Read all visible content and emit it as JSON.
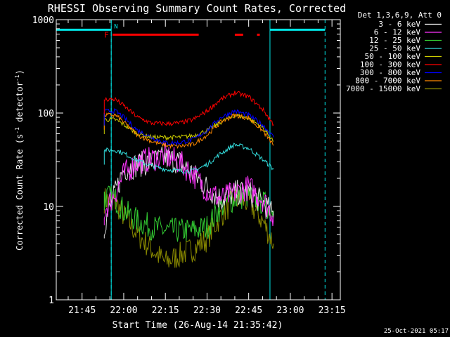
{
  "chart_data": {
    "type": "line",
    "title": "RHESSI Observing Summary Count Rates, Corrected",
    "xlabel": "Start Time (26-Aug-14 21:35:42)",
    "ylabel_main": "Corrected Count Rate (s",
    "ylabel_sup1": "-1",
    "ylabel_mid": " detector",
    "ylabel_sup2": "-1",
    "ylabel_end": ")",
    "xlim": [
      "21:35:42",
      "23:18:00"
    ],
    "ylim": [
      1,
      1000
    ],
    "yscale": "log",
    "x_ticks": [
      "21:45",
      "22:00",
      "22:15",
      "22:30",
      "22:45",
      "23:00",
      "23:15"
    ],
    "y_ticks": [
      "1",
      "10",
      "100",
      "1000"
    ],
    "legend": {
      "placement": "right",
      "header": "Det 1,3,6,9, Att 0",
      "entries": [
        {
          "label": "3 - 6 keV",
          "color": "#ffffff"
        },
        {
          "label": "6 - 12 keV",
          "color": "#ff33ff"
        },
        {
          "label": "12 - 25 keV",
          "color": "#33cc33"
        },
        {
          "label": "25 - 50 keV",
          "color": "#33dddd"
        },
        {
          "label": "50 - 100 keV",
          "color": "#cccc00"
        },
        {
          "label": "100 - 300 keV",
          "color": "#ff0000"
        },
        {
          "label": "300 - 800 keV",
          "color": "#0000ff"
        },
        {
          "label": "800 - 7000 keV",
          "color": "#ff8800"
        },
        {
          "label": "7000 - 15000 keV",
          "color": "#888800"
        }
      ]
    },
    "x": [
      "21:53",
      "21:57",
      "22:00",
      "22:05",
      "22:10",
      "22:15",
      "22:20",
      "22:25",
      "22:30",
      "22:35",
      "22:40",
      "22:45",
      "22:50",
      "22:54"
    ],
    "series": [
      {
        "name": "3 - 6 keV",
        "color": "#dddddd",
        "values": [
          6.5,
          14,
          25,
          28,
          30,
          33,
          30,
          22,
          16,
          12,
          14,
          14,
          11,
          8
        ]
      },
      {
        "name": "6 - 12 keV",
        "color": "#ff33ff",
        "values": [
          9,
          14,
          22,
          30,
          32,
          35,
          30,
          22,
          15,
          12,
          14,
          16,
          12,
          8
        ]
      },
      {
        "name": "12 - 25 keV",
        "color": "#33cc33",
        "values": [
          13,
          12,
          9,
          7,
          6,
          5.5,
          5.5,
          5.5,
          6,
          10,
          12,
          13,
          11,
          9
        ]
      },
      {
        "name": "25 - 50 keV",
        "color": "#33dddd",
        "values": [
          40,
          40,
          37,
          31,
          27,
          25,
          24,
          24,
          28,
          37,
          46,
          42,
          32,
          25
        ]
      },
      {
        "name": "50 - 100 keV",
        "color": "#cccc00",
        "values": [
          85,
          85,
          75,
          60,
          55,
          55,
          55,
          57,
          65,
          80,
          95,
          88,
          70,
          50
        ]
      },
      {
        "name": "100 - 300 keV",
        "color": "#ff0000",
        "values": [
          140,
          140,
          120,
          90,
          78,
          77,
          78,
          85,
          105,
          140,
          165,
          150,
          110,
          75
        ]
      },
      {
        "name": "300 - 800 keV",
        "color": "#0000ff",
        "values": [
          105,
          105,
          90,
          65,
          55,
          48,
          48,
          52,
          65,
          90,
          105,
          95,
          75,
          55
        ]
      },
      {
        "name": "800 - 7000 keV",
        "color": "#ff8800",
        "values": [
          95,
          95,
          80,
          58,
          50,
          45,
          44,
          46,
          58,
          80,
          95,
          88,
          65,
          45
        ]
      },
      {
        "name": "7000 - 15000 keV",
        "color": "#888800",
        "values": [
          12,
          11,
          8,
          5,
          3.5,
          2.5,
          3,
          3.5,
          4.5,
          8,
          12,
          11,
          7,
          4
        ]
      }
    ],
    "annotations": {
      "night_label": "N",
      "flare_label": "F",
      "night_end": "21:55:30",
      "night_start": "22:52:40",
      "night_bands": [
        [
          "21:35:42",
          "21:55:30"
        ],
        [
          "22:52:40",
          "23:12:30"
        ]
      ],
      "flare_bars": [
        [
          "21:56",
          "22:27"
        ],
        [
          "22:40",
          "22:43"
        ],
        [
          "22:48",
          "22:49"
        ]
      ]
    }
  },
  "timestamp": "25-Oct-2021 05:17"
}
